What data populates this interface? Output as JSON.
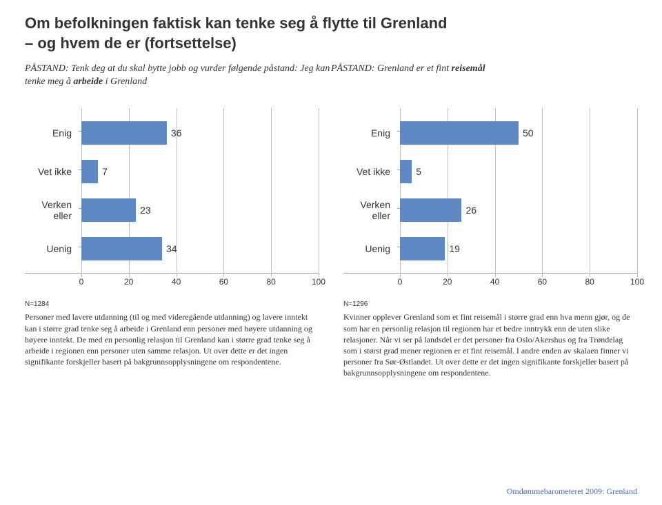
{
  "title_line1": "Om befolkningen faktisk kan tenke seg å flytte til Grenland",
  "title_line2": "– og hvem de er (fortsettelse)",
  "left": {
    "subheader_prefix": "PÅSTAND: Tenk deg at du skal bytte jobb og vurder følgende påstand: Jeg kan tenke meg å ",
    "subheader_bold": "arbeide",
    "subheader_suffix": " i Grenland",
    "n_label": "N=1284",
    "note": "Personer med lavere utdanning (til og med videregående utdanning) og lavere inntekt kan i større grad tenke seg å arbeide i Grenland enn personer med høyere utdanning og høyere inntekt. De med en personlig relasjon til Grenland kan i større grad tenke seg å arbeide i regionen enn personer uten samme relasjon. Ut over dette er det ingen signifikante forskjeller basert på bakgrunnsopplysningene om respondentene.",
    "chart": {
      "type": "bar",
      "categories": [
        "Enig",
        "Vet ikke",
        "Verken eller",
        "Uenig"
      ],
      "values": [
        36,
        7,
        23,
        34
      ],
      "bar_color": "#6088c2",
      "xlim": [
        0,
        100
      ],
      "xtick_step": 20,
      "label_fontsize": 14,
      "value_fontsize": 14,
      "grid_color": "#bbbbbb",
      "background_color": "#ffffff"
    }
  },
  "right": {
    "subheader_prefix": "PÅSTAND: Grenland er et fint ",
    "subheader_bold": "reisemål",
    "subheader_suffix": "",
    "n_label": "N=1296",
    "note": "Kvinner opplever Grenland som et fint reisemål i større grad enn hva menn gjør, og de som har en personlig relasjon til regionen har et bedre inntrykk enn de uten slike relasjoner. Når vi ser på landsdel er det personer fra Oslo/Akershus og fra Trøndelag som i størst grad mener regionen er et fint reisemål. I andre enden av skalaen finner vi personer fra Sør-Østlandet. Ut over dette er det ingen signifikante forskjeller basert på bakgrunnsopplysningene om respondentene.",
    "chart": {
      "type": "bar",
      "categories": [
        "Enig",
        "Vet ikke",
        "Verken eller",
        "Uenig"
      ],
      "values": [
        50,
        5,
        26,
        19
      ],
      "bar_color": "#6088c2",
      "xlim": [
        0,
        100
      ],
      "xtick_step": 20,
      "label_fontsize": 14,
      "value_fontsize": 14,
      "grid_color": "#bbbbbb",
      "background_color": "#ffffff"
    }
  },
  "footer": "Omdømmebarometeret 2009: Grenland"
}
